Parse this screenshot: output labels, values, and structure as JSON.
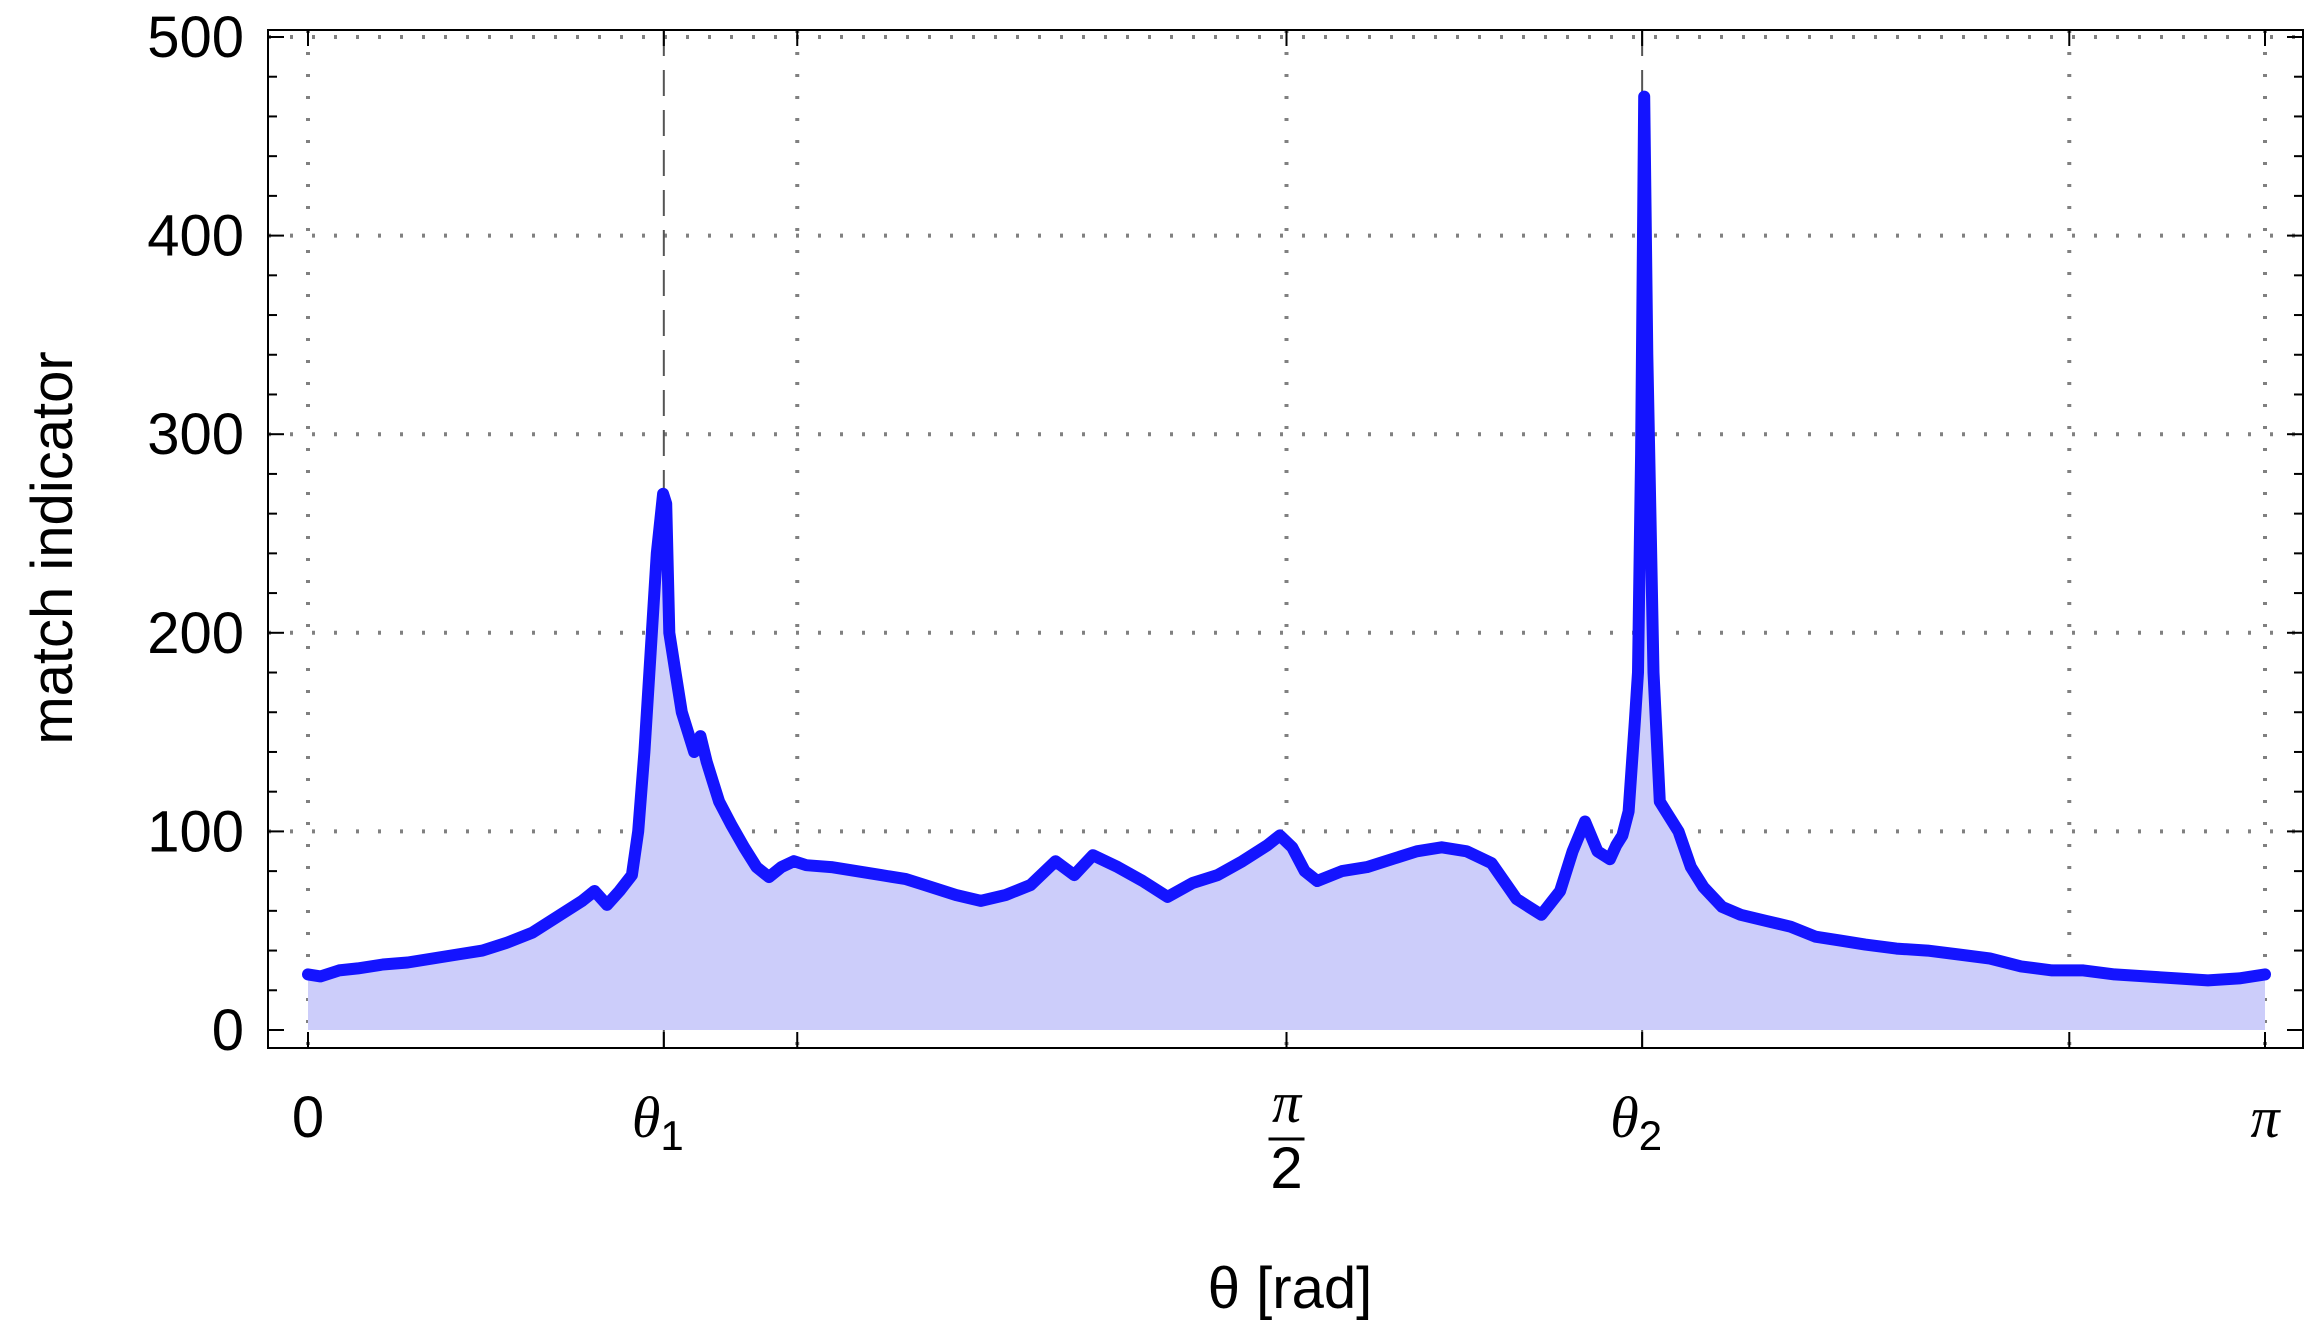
{
  "chart_data": {
    "type": "area",
    "xlabel": "θ [rad]",
    "ylabel": "match indicator",
    "xlim": [
      0,
      3.14159
    ],
    "ylim": [
      0,
      500
    ],
    "grid": true,
    "colors": {
      "line": "#1414ff",
      "fill": "#cccdfa",
      "grid": "#808080",
      "marker": "#555555"
    },
    "x_ticks": [
      {
        "value": 0,
        "label": "0"
      },
      {
        "value": 0.5712,
        "label": "θ",
        "sub": "1"
      },
      {
        "value": 1.5708,
        "label": "π",
        "denominator": "2"
      },
      {
        "value": 2.1417,
        "label": "θ",
        "sub": "2"
      },
      {
        "value": 3.14159,
        "label": "π"
      }
    ],
    "x_grid_values": [
      0,
      0.7854,
      1.5708,
      2.8274,
      3.14159
    ],
    "marker_lines": [
      0.5712,
      2.1417
    ],
    "y_ticks": [
      0,
      100,
      200,
      300,
      400,
      500
    ],
    "series": [
      {
        "x": [
          0.0,
          0.02,
          0.05,
          0.08,
          0.12,
          0.16,
          0.2,
          0.24,
          0.28,
          0.32,
          0.36,
          0.4,
          0.44,
          0.46,
          0.48,
          0.5,
          0.52,
          0.53,
          0.54,
          0.55,
          0.56,
          0.57,
          0.575,
          0.58,
          0.59,
          0.6,
          0.61,
          0.62,
          0.63,
          0.64,
          0.65,
          0.66,
          0.68,
          0.7,
          0.72,
          0.74,
          0.76,
          0.78,
          0.8,
          0.84,
          0.88,
          0.92,
          0.96,
          1.0,
          1.04,
          1.08,
          1.12,
          1.16,
          1.2,
          1.23,
          1.26,
          1.3,
          1.34,
          1.38,
          1.42,
          1.46,
          1.5,
          1.54,
          1.56,
          1.58,
          1.6,
          1.62,
          1.66,
          1.7,
          1.74,
          1.78,
          1.82,
          1.86,
          1.9,
          1.94,
          1.96,
          1.98,
          1.995,
          2.01,
          2.03,
          2.05,
          2.07,
          2.09,
          2.1,
          2.11,
          2.12,
          2.13,
          2.135,
          2.14,
          2.145,
          2.15,
          2.16,
          2.17,
          2.18,
          2.2,
          2.22,
          2.24,
          2.27,
          2.3,
          2.34,
          2.38,
          2.42,
          2.46,
          2.5,
          2.55,
          2.6,
          2.65,
          2.7,
          2.75,
          2.8,
          2.85,
          2.9,
          2.95,
          3.0,
          3.05,
          3.1,
          3.14159
        ],
        "values": [
          28,
          27,
          30,
          31,
          33,
          34,
          36,
          38,
          40,
          44,
          49,
          57,
          65,
          70,
          63,
          70,
          78,
          100,
          140,
          190,
          240,
          270,
          265,
          200,
          180,
          160,
          150,
          140,
          148,
          135,
          125,
          115,
          103,
          92,
          82,
          77,
          82,
          85,
          83,
          82,
          80,
          78,
          76,
          72,
          68,
          65,
          68,
          73,
          85,
          78,
          88,
          82,
          75,
          67,
          74,
          78,
          85,
          93,
          98,
          92,
          80,
          75,
          80,
          82,
          86,
          90,
          92,
          90,
          84,
          66,
          62,
          58,
          64,
          70,
          90,
          105,
          90,
          86,
          93,
          98,
          110,
          155,
          180,
          290,
          470,
          340,
          180,
          115,
          110,
          100,
          82,
          72,
          62,
          58,
          55,
          52,
          47,
          45,
          43,
          41,
          40,
          38,
          36,
          32,
          30,
          30,
          28,
          27,
          26,
          25,
          26,
          28
        ]
      }
    ]
  }
}
